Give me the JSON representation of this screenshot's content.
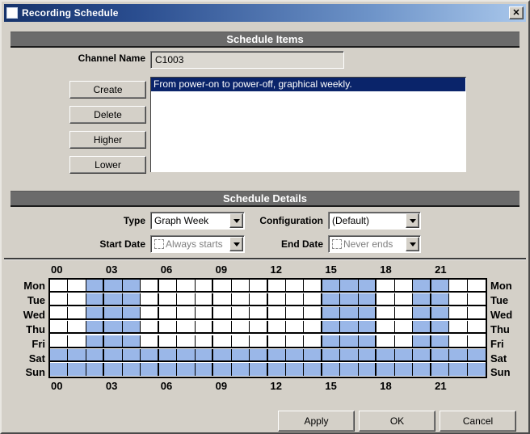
{
  "window": {
    "title": "Recording Schedule",
    "close_label": "✕"
  },
  "schedule_items": {
    "header": "Schedule Items",
    "channel_name_label": "Channel Name",
    "channel_name_value": "C1003",
    "buttons": [
      {
        "id": "create",
        "label": "Create"
      },
      {
        "id": "delete",
        "label": "Delete"
      },
      {
        "id": "higher",
        "label": "Higher"
      },
      {
        "id": "lower",
        "label": "Lower"
      }
    ],
    "list": {
      "items": [
        {
          "text": "From power-on to power-off, graphical weekly.",
          "selected": true
        }
      ]
    }
  },
  "schedule_details": {
    "header": "Schedule Details",
    "type_label": "Type",
    "type_value": "Graph Week",
    "configuration_label": "Configuration",
    "configuration_value": "(Default)",
    "start_date_label": "Start Date",
    "start_date_value": "Always starts",
    "end_date_label": "End Date",
    "end_date_value": "Never ends"
  },
  "week_grid": {
    "hour_labels": [
      "00",
      "03",
      "06",
      "09",
      "12",
      "15",
      "18",
      "21"
    ],
    "hours_per_day": 24,
    "selected_color": "#9ab7e8",
    "rows": [
      {
        "day": "Mon",
        "selected_hours": [
          2,
          3,
          4,
          15,
          16,
          17,
          20,
          21
        ]
      },
      {
        "day": "Tue",
        "selected_hours": [
          2,
          3,
          4,
          15,
          16,
          17,
          20,
          21
        ]
      },
      {
        "day": "Wed",
        "selected_hours": [
          2,
          3,
          4,
          15,
          16,
          17,
          20,
          21
        ]
      },
      {
        "day": "Thu",
        "selected_hours": [
          2,
          3,
          4,
          15,
          16,
          17,
          20,
          21
        ]
      },
      {
        "day": "Fri",
        "selected_hours": [
          2,
          3,
          4,
          15,
          16,
          17,
          20,
          21
        ]
      },
      {
        "day": "Sat",
        "selected_hours": [
          0,
          1,
          2,
          3,
          4,
          5,
          6,
          7,
          8,
          9,
          10,
          11,
          12,
          13,
          14,
          15,
          16,
          17,
          18,
          19,
          20,
          21,
          22,
          23
        ]
      },
      {
        "day": "Sun",
        "selected_hours": [
          0,
          1,
          2,
          3,
          4,
          5,
          6,
          7,
          8,
          9,
          10,
          11,
          12,
          13,
          14,
          15,
          16,
          17,
          18,
          19,
          20,
          21,
          22,
          23
        ]
      }
    ]
  },
  "footer": {
    "apply_label": "Apply",
    "ok_label": "OK",
    "cancel_label": "Cancel"
  }
}
